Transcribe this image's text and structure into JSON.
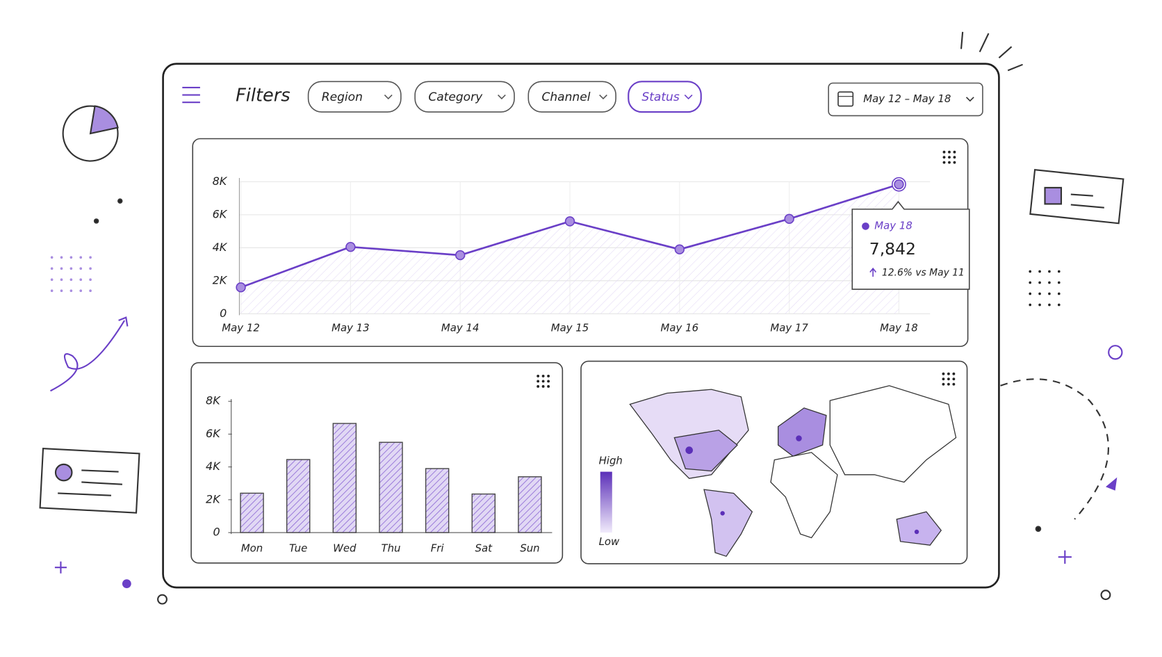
{
  "header": {
    "title": "Filters",
    "filters": [
      "Region",
      "Category",
      "Channel",
      "Status"
    ],
    "active_filter": 3,
    "date_range": "May 12 – May 18"
  },
  "chart_data": [
    {
      "type": "line",
      "categories": [
        "May 12",
        "May 13",
        "May 14",
        "May 15",
        "May 16",
        "May 17",
        "May 18"
      ],
      "values": [
        1600,
        4050,
        3550,
        5600,
        3900,
        5750,
        7842
      ],
      "value_labels": [
        null,
        null,
        null,
        null,
        null,
        null,
        "7,842"
      ],
      "annotation": "12.6% vs May 11",
      "color": "#6a3fc7",
      "ylim": [
        0,
        8000
      ],
      "yticks": [
        0,
        {
          "value": 2000,
          "label": "2K"
        },
        {
          "value": 4000,
          "label": "4K"
        },
        {
          "value": 6000,
          "label": "6K"
        },
        {
          "value": 8000,
          "label": "8K"
        }
      ],
      "grid": true
    },
    {
      "type": "bar",
      "categories": [
        "Mon",
        "Tue",
        "Wed",
        "Thu",
        "Fri",
        "Sat",
        "Sun"
      ],
      "values": [
        2400,
        4450,
        6650,
        5500,
        3900,
        2350,
        3400
      ],
      "color": "#a98ee0",
      "ylim": [
        0,
        8000
      ],
      "yticks": [
        0,
        {
          "value": 2000,
          "label": "2K"
        },
        {
          "value": 4000,
          "label": "4K"
        },
        {
          "value": 6000,
          "label": "6K"
        },
        {
          "value": 8000,
          "label": "8K"
        }
      ],
      "grid": false
    }
  ],
  "map": {
    "legend_high": "High",
    "legend_low": "Low"
  }
}
